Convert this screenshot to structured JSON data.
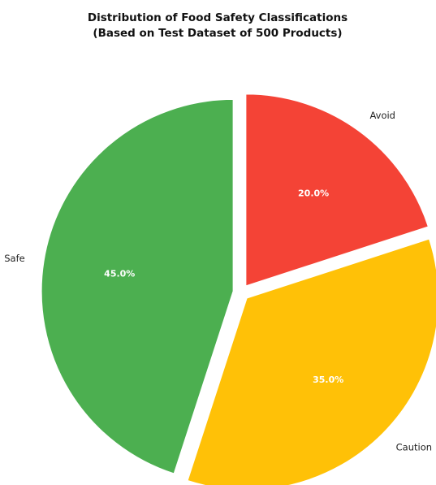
{
  "chart_data": {
    "type": "pie",
    "title": "Distribution of Food Safety Classifications",
    "subtitle": "(Based on Test Dataset of 500 Products)",
    "categories": [
      "Safe",
      "Caution",
      "Avoid"
    ],
    "values": [
      45.0,
      35.0,
      20.0
    ],
    "value_labels": [
      "45.0%",
      "35.0%",
      "20.0%"
    ],
    "colors": [
      "#4caf50",
      "#ffc107",
      "#f44336"
    ],
    "start_angle_deg": 90,
    "direction": "counterclockwise",
    "exploded": true,
    "legend": "none"
  }
}
